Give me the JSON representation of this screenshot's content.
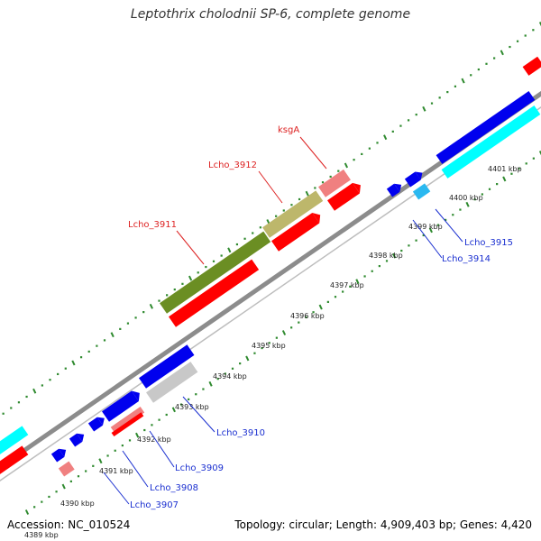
{
  "title": "Leptothrix cholodnii SP-6, complete genome",
  "footer": {
    "accession": "Accession: NC_010524",
    "summary": "Topology: circular; Length: 4,909,403 bp; Genes: 4,420"
  },
  "colors": {
    "backbone": "#8c8c8c",
    "tick_dots": "#2f8a2f",
    "red_label": "#dd2222",
    "blue_label": "#1a2fd0",
    "fwd_cds": "#ff0000",
    "rev_cds": "#0000ee",
    "cyan_cds": "#00ffff",
    "olive_dark": "#6b8e23",
    "olive_light": "#bdb76b",
    "pink": "#f08080",
    "grey_cds": "#c8c8c8"
  },
  "ticks": [
    {
      "label": "4389 kbp"
    },
    {
      "label": "4390 kbp"
    },
    {
      "label": "4391 kbp"
    },
    {
      "label": "4392 kbp"
    },
    {
      "label": "4393 kbp"
    },
    {
      "label": "4394 kbp"
    },
    {
      "label": "4395 kbp"
    },
    {
      "label": "4396 kbp"
    },
    {
      "label": "4397 kbp"
    },
    {
      "label": "4398 kbp"
    },
    {
      "label": "4399 kbp"
    },
    {
      "label": "4400 kbp"
    },
    {
      "label": "4401 kbp"
    }
  ],
  "gene_labels": {
    "ksgA": "ksgA",
    "lcho_3912": "Lcho_3912",
    "lcho_3911": "Lcho_3911",
    "lcho_3915": "Lcho_3915",
    "lcho_3914": "Lcho_3914",
    "lcho_3910": "Lcho_3910",
    "lcho_3909": "Lcho_3909",
    "lcho_3908": "Lcho_3908",
    "lcho_3907": "Lcho_3907"
  }
}
